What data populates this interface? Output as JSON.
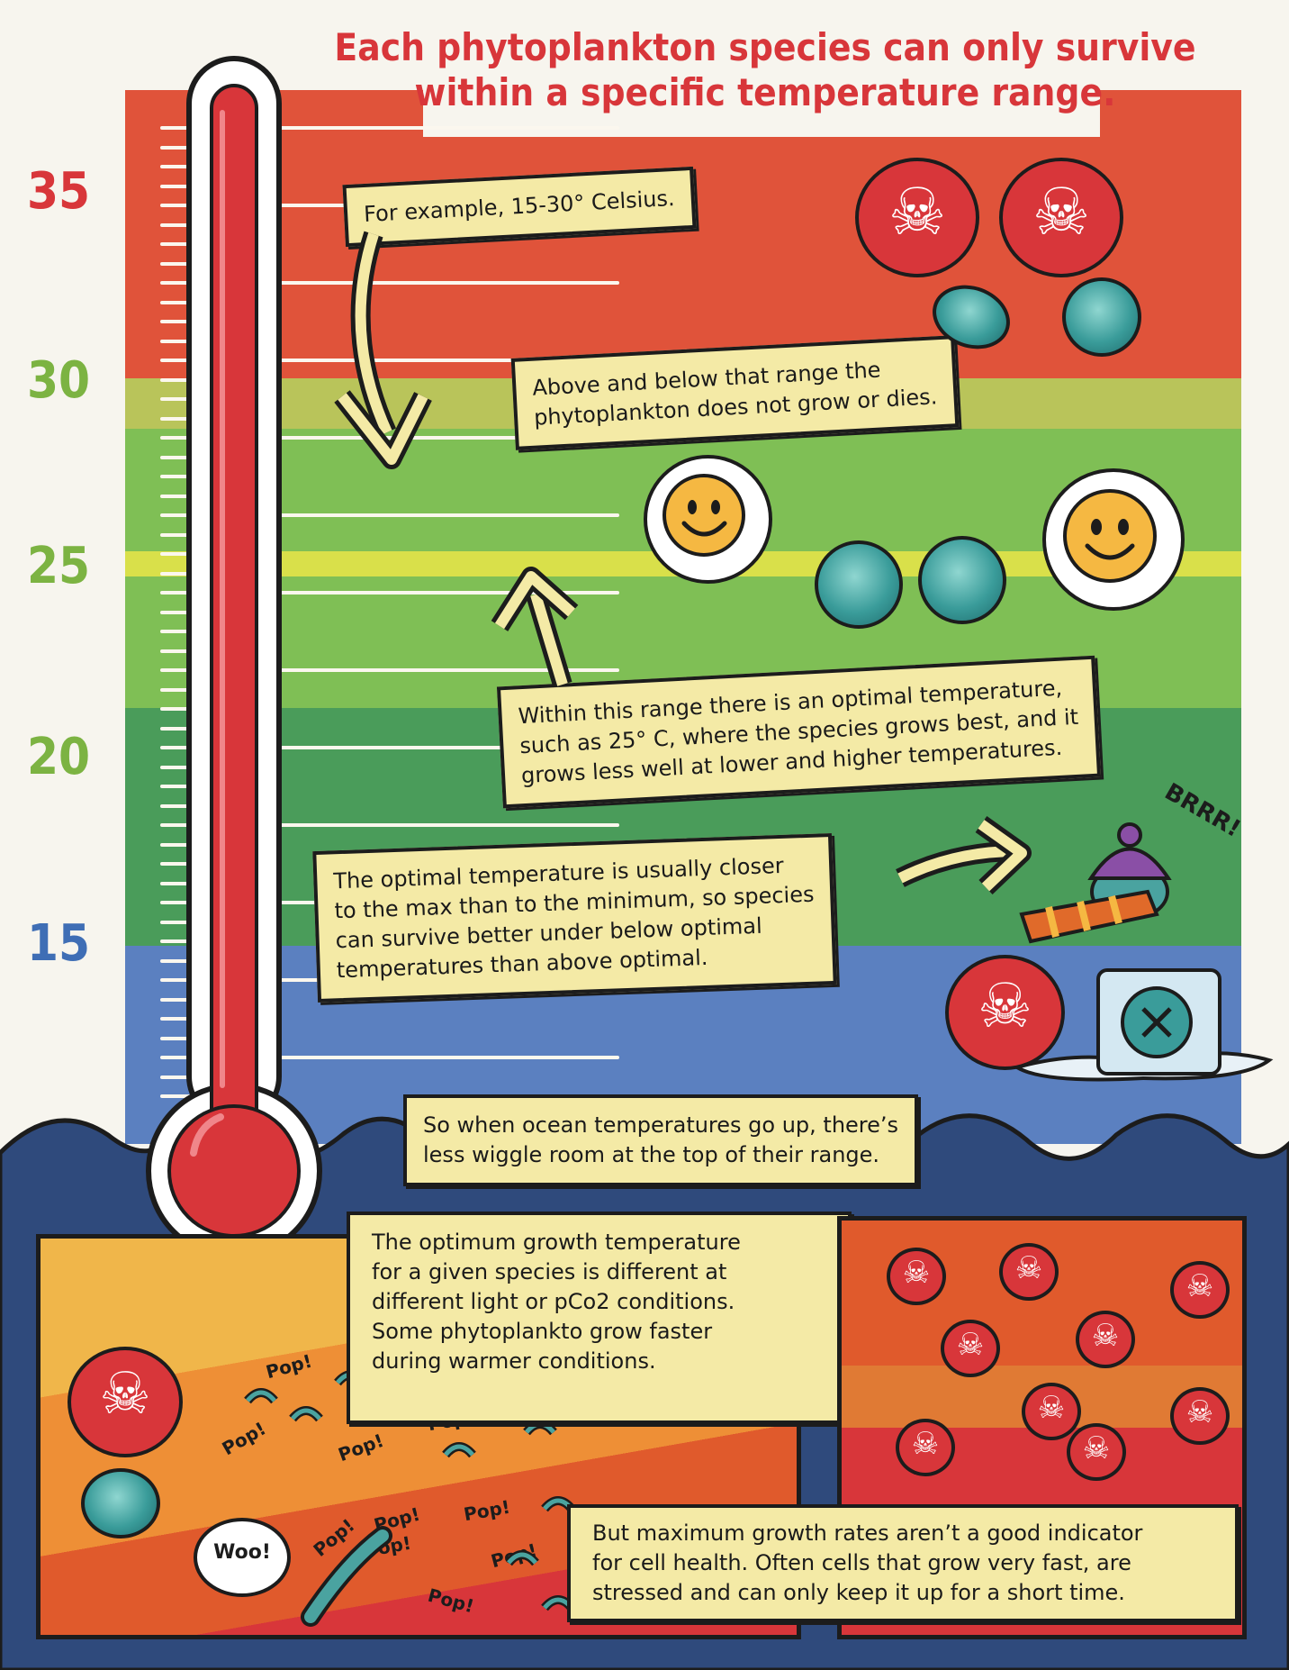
{
  "title": {
    "line1": "Each phytoplankton species can only survive",
    "line2": "within a specific temperature range."
  },
  "scale": {
    "labels": [
      "35",
      "30",
      "25",
      "20",
      "15"
    ],
    "colors": [
      "#d8363a",
      "#7cb342",
      "#7cb342",
      "#7cb342",
      "#3f6eb5"
    ]
  },
  "notes": {
    "example": "For example, 15-30° Celsius.",
    "above_below": [
      "Above and below that range the",
      "phytoplankton does not grow or dies."
    ],
    "optimal": [
      "Within this range there is an optimal temperature,",
      "such as 25° C, where the species grows best, and it",
      "grows less well at lower and higher temperatures."
    ],
    "closer_max": [
      "The optimal temperature is usually closer",
      "to the max than to the minimum, so species",
      "can survive better under below optimal",
      "temperatures than above optimal."
    ],
    "wiggle": [
      "So when ocean temperatures go up, there’s",
      "less wiggle room at the top of their range."
    ],
    "optimum_growth": [
      "The optimum growth temperature",
      "for a given species is different at",
      "different light or pCo2 conditions.",
      "Some phytoplankto grow faster",
      "during warmer conditions."
    ],
    "max_growth": [
      "But maximum growth rates aren’t a good indicator",
      "for cell health. Often cells that grow very fast, are",
      "stressed and can only keep it up for a short time."
    ]
  },
  "sound_effects": {
    "brrr": "BRRR!",
    "woo": "Woo!",
    "pop": "Pop!"
  },
  "colors": {
    "red_band": "#e0533a",
    "yellow_green_band": "#b9c45a",
    "green_band": "#7fbf55",
    "dark_green_band": "#4a9c5a",
    "blue_band": "#5b80c0",
    "ocean": "#2f4a7c",
    "thermometer": "#d8363a",
    "note_fill": "#f4eaa6"
  },
  "icons": [
    "skull-icon",
    "smiley-icon",
    "phytoplankton-cell-icon",
    "ice-cube-icon",
    "knit-hat-icon",
    "scarf-icon",
    "arrow-icon",
    "wave-icon"
  ]
}
